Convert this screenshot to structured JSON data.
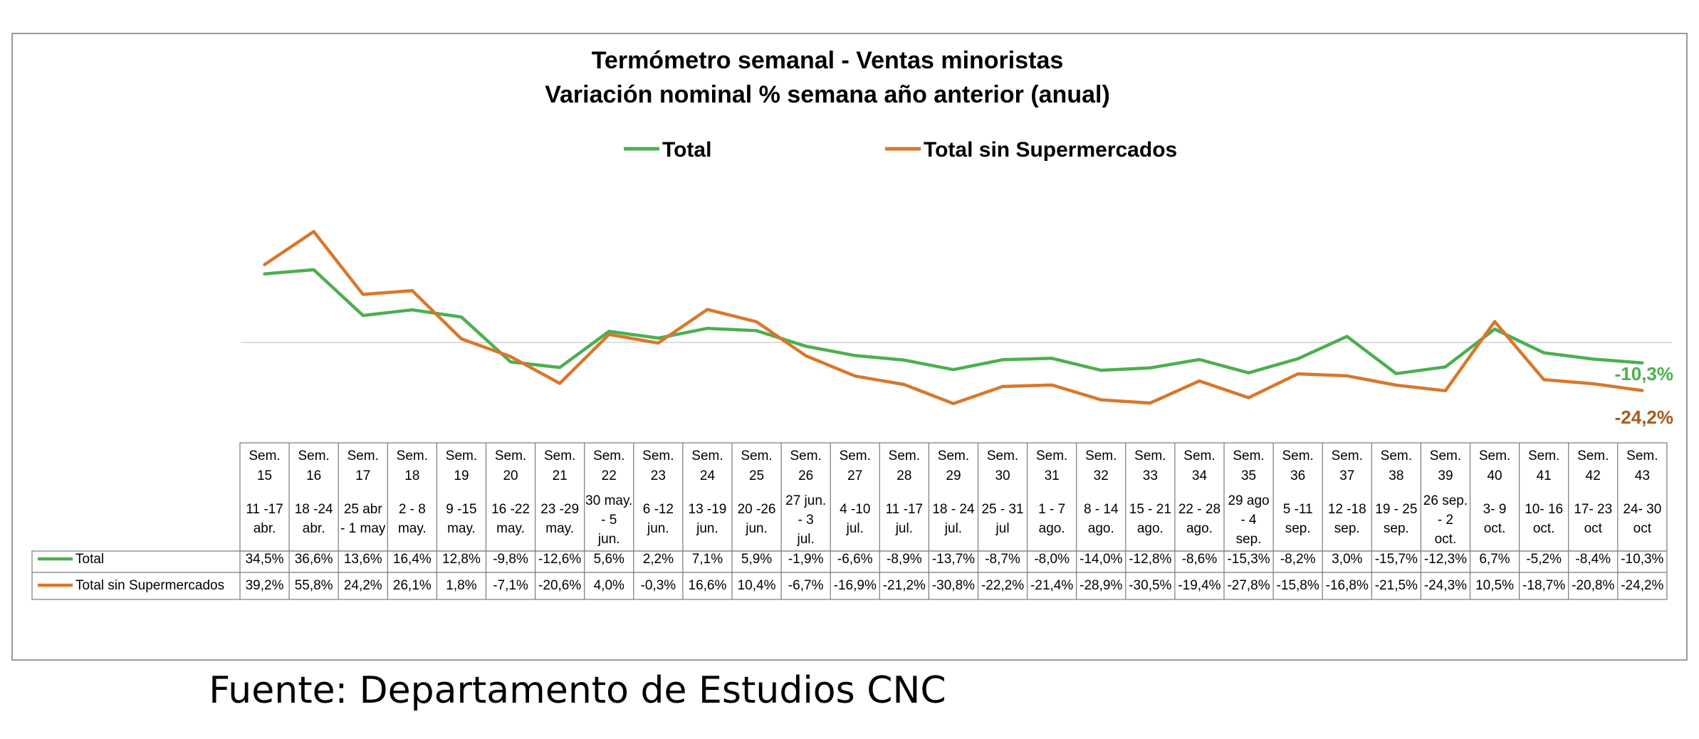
{
  "chart_data": {
    "type": "line",
    "title": "Termómetro semanal - Ventas minoristas",
    "subtitle": "Variación nominal % semana año anterior (anual)",
    "xlabel": "",
    "ylabel": "",
    "legend_position": "top-center",
    "grid": false,
    "ylim": [
      -40,
      65
    ],
    "weeks": [
      "Sem. 15",
      "Sem. 16",
      "Sem. 17",
      "Sem. 18",
      "Sem. 19",
      "Sem. 20",
      "Sem. 21",
      "Sem. 22",
      "Sem. 23",
      "Sem. 24",
      "Sem. 25",
      "Sem. 26",
      "Sem. 27",
      "Sem. 28",
      "Sem. 29",
      "Sem. 30",
      "Sem. 31",
      "Sem. 32",
      "Sem. 33",
      "Sem. 34",
      "Sem. 35",
      "Sem. 36",
      "Sem. 37",
      "Sem. 38",
      "Sem. 39",
      "Sem. 40",
      "Sem. 41",
      "Sem. 42",
      "Sem. 43"
    ],
    "dates": [
      "11  -17 abr.",
      "18 -24 abr.",
      "25 abr - 1 may",
      "2 - 8 may.",
      "9 -15 may.",
      "16 -22 may.",
      "23 -29 may.",
      "30 may. - 5 jun.",
      "6 -12 jun.",
      "13 -19 jun.",
      "20 -26 jun.",
      "27 jun. - 3 jul.",
      "4 -10 jul.",
      "11 -17 jul.",
      "18 - 24 jul.",
      "25 - 31 jul",
      "1 - 7 ago.",
      "8 - 14 ago.",
      "15 - 21 ago.",
      "22 - 28 ago.",
      "29 ago - 4 sep.",
      "5 -11 sep.",
      "12 -18 sep.",
      "19 - 25 sep.",
      "26 sep. - 2 oct.",
      "3- 9 oct.",
      "10- 16 oct.",
      "17- 23 oct",
      "24- 30 oct"
    ],
    "series": [
      {
        "name": "Total",
        "color": "#4CAF50",
        "values": [
          34.5,
          36.6,
          13.6,
          16.4,
          12.8,
          -9.8,
          -12.6,
          5.6,
          2.2,
          7.1,
          5.9,
          -1.9,
          -6.6,
          -8.9,
          -13.7,
          -8.7,
          -8.0,
          -14.0,
          -12.8,
          -8.6,
          -15.3,
          -8.2,
          3.0,
          -15.7,
          -12.3,
          6.7,
          -5.2,
          -8.4,
          -10.3
        ],
        "labels": [
          "34,5%",
          "36,6%",
          "13,6%",
          "16,4%",
          "12,8%",
          "-9,8%",
          "-12,6%",
          "5,6%",
          "2,2%",
          "7,1%",
          "5,9%",
          "-1,9%",
          "-6,6%",
          "-8,9%",
          "-13,7%",
          "-8,7%",
          "-8,0%",
          "-14,0%",
          "-12,8%",
          "-8,6%",
          "-15,3%",
          "-8,2%",
          "3,0%",
          "-15,7%",
          "-12,3%",
          "6,7%",
          "-5,2%",
          "-8,4%",
          "-10,3%"
        ],
        "end_label": "-10,3%",
        "end_label_color": "#4CAF50"
      },
      {
        "name": "Total sin Supermercados",
        "color": "#D9772B",
        "values": [
          39.2,
          55.8,
          24.2,
          26.1,
          1.8,
          -7.1,
          -20.6,
          4.0,
          -0.3,
          16.6,
          10.4,
          -6.7,
          -16.9,
          -21.2,
          -30.8,
          -22.2,
          -21.4,
          -28.9,
          -30.5,
          -19.4,
          -27.8,
          -15.8,
          -16.8,
          -21.5,
          -24.3,
          10.5,
          -18.7,
          -20.8,
          -24.2
        ],
        "labels": [
          "39,2%",
          "55,8%",
          "24,2%",
          "26,1%",
          "1,8%",
          "-7,1%",
          "-20,6%",
          "4,0%",
          "-0,3%",
          "16,6%",
          "10,4%",
          "-6,7%",
          "-16,9%",
          "-21,2%",
          "-30,8%",
          "-22,2%",
          "-21,4%",
          "-28,9%",
          "-30,5%",
          "-19,4%",
          "-27,8%",
          "-15,8%",
          "-16,8%",
          "-21,5%",
          "-24,3%",
          "10,5%",
          "-18,7%",
          "-20,8%",
          "-24,2%"
        ],
        "end_label": "-24,2%",
        "end_label_color": "#A85A1A"
      }
    ]
  },
  "source": "Fuente: Departamento de Estudios CNC"
}
